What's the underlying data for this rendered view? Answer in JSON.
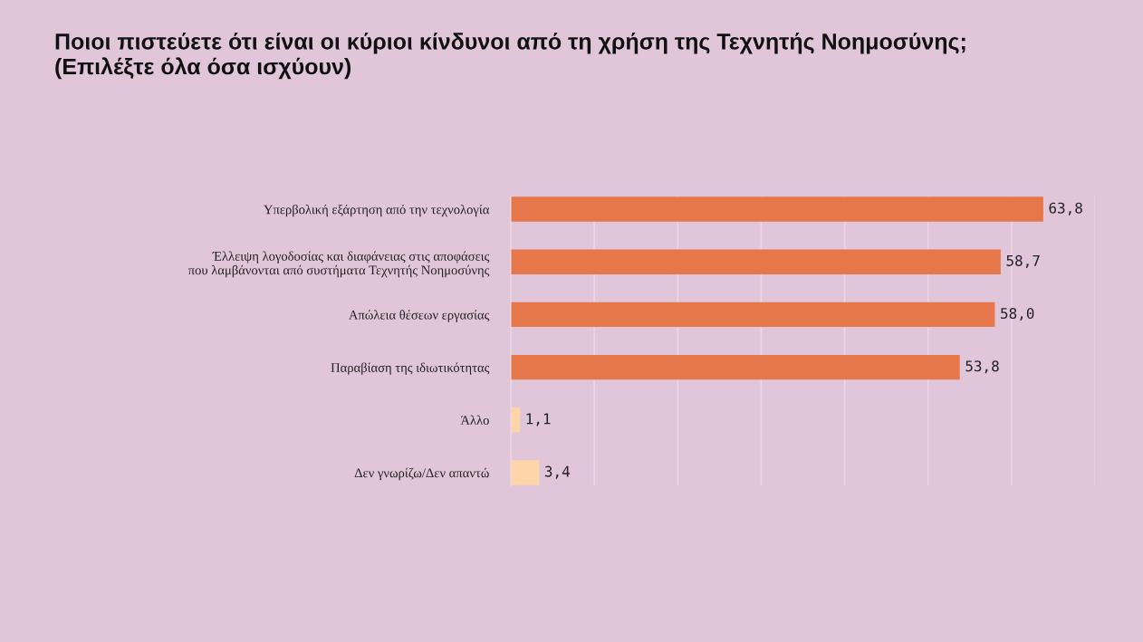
{
  "chart_data": {
    "type": "bar",
    "orientation": "horizontal",
    "title": "Ποιοι πιστεύετε ότι είναι οι κύριοι κίνδυνοι από τη χρήση της Τεχνητής Νοημοσύνης;\n(Επιλέξτε όλα όσα ισχύουν)",
    "categories": [
      "Υπερβολική εξάρτηση από την τεχνολογία",
      "Έλλειψη λογοδοσίας και διαφάνειας στις αποφάσεις\nπου λαμβάνονται από συστήματα Τεχνητής Νοημοσύνης",
      "Απώλεια θέσεων εργασίας",
      "Παραβίαση της ιδιωτικότητας",
      "Άλλο",
      "Δεν γνωρίζω/Δεν απαντώ"
    ],
    "values": [
      63.8,
      58.7,
      58.0,
      53.8,
      1.1,
      3.4
    ],
    "value_labels": [
      "63,8",
      "58,7",
      "58,0",
      "53,8",
      "1,1",
      "3,4"
    ],
    "colors": [
      "#e5774b",
      "#e5774b",
      "#e5774b",
      "#e5774b",
      "#fdd5a8",
      "#fdd5a8"
    ],
    "xlim": [
      0,
      70
    ],
    "xticks": [
      {
        "value": 0,
        "label": null
      },
      {
        "value": 10,
        "label": null
      },
      {
        "value": 20,
        "label": null
      },
      {
        "value": 30,
        "label": null
      },
      {
        "value": 40,
        "label": null
      },
      {
        "value": 50,
        "label": null
      },
      {
        "value": 60,
        "label": null
      },
      {
        "value": 70,
        "label": null
      }
    ],
    "grid": "x",
    "tick_labels": "y"
  }
}
